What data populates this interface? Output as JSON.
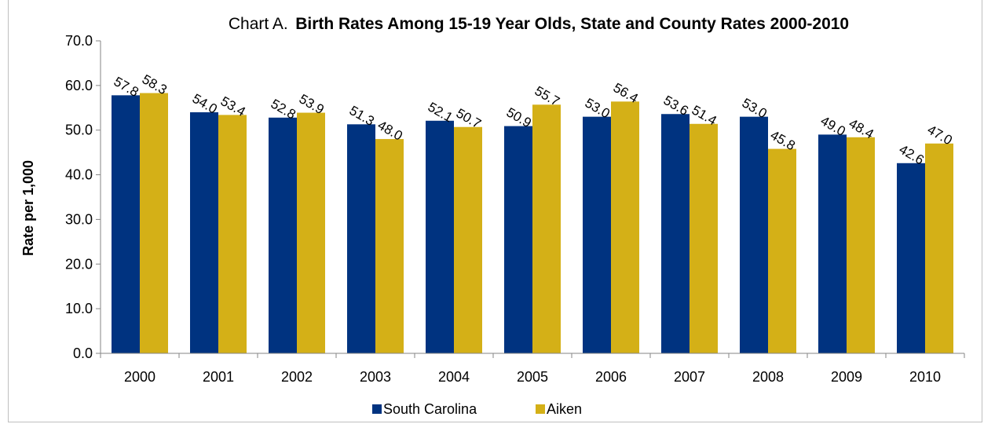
{
  "chart_data": {
    "type": "bar",
    "title_prefix": "Chart A.",
    "title": "Birth Rates Among 15-19 Year Olds, State and County Rates 2000-2010",
    "ylabel": "Rate per 1,000",
    "xlabel": "",
    "ylim": [
      0,
      70
    ],
    "ytick_step": 10,
    "yticks": [
      "0.0",
      "10.0",
      "20.0",
      "30.0",
      "40.0",
      "50.0",
      "60.0",
      "70.0"
    ],
    "categories": [
      "2000",
      "2001",
      "2002",
      "2003",
      "2004",
      "2005",
      "2006",
      "2007",
      "2008",
      "2009",
      "2010"
    ],
    "series": [
      {
        "name": "South Carolina",
        "color": "#003380",
        "values": [
          57.8,
          54.0,
          52.8,
          51.3,
          52.1,
          50.9,
          53.0,
          53.6,
          53.0,
          49.0,
          42.6
        ]
      },
      {
        "name": "Aiken",
        "color": "#d4b017",
        "values": [
          58.3,
          53.4,
          53.9,
          48.0,
          50.7,
          55.7,
          56.4,
          51.4,
          45.8,
          48.4,
          47.0
        ]
      }
    ],
    "data_labels": true,
    "data_label_rotation": 30,
    "grid": false,
    "legend": "bottom"
  }
}
